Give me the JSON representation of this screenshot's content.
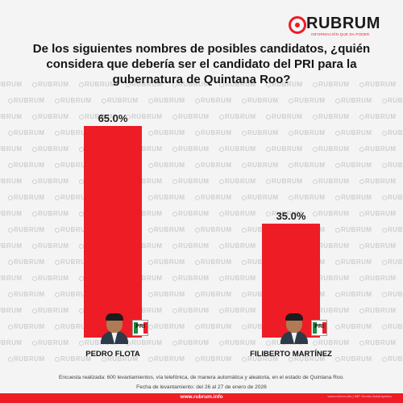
{
  "brand": {
    "name": "RUBRUM",
    "tagline": "INFORMACIÓN QUE DA PODER",
    "watermark_text": "RUBRUM",
    "accent_color": "#ee1c25"
  },
  "question": "De los siguientes nombres de posibles candidatos, ¿quién considera que debería ser el candidato del PRI para la gubernatura de Quintana Roo?",
  "chart_data": {
    "type": "bar",
    "categories": [
      "PEDRO FLOTA",
      "FILIBERTO MARTÍNEZ"
    ],
    "values": [
      65.0,
      35.0
    ],
    "value_labels": [
      "65.0%",
      "35.0%"
    ],
    "unit": "%",
    "ylim": [
      0,
      65
    ],
    "bar_color": "#ee1c25",
    "grid": false,
    "legend": "none"
  },
  "candidates": [
    {
      "photo_icon": "candidate-photo",
      "party_icon": "pri-logo",
      "party_abbr": "PRI"
    },
    {
      "photo_icon": "candidate-photo",
      "party_icon": "pri-logo",
      "party_abbr": "PRI"
    }
  ],
  "footer": {
    "methodology": "Encuesta realizada: 600 levantamientos, vía telefónica, de manera automática y aleatoria, en el estado de Quintana Roo.",
    "dates": "Fecha de levantamiento: del 26 al 27 de enero de 2026",
    "url": "www.rubrum.info",
    "credit": "www.rubrum.info | IMP. Rumbo Autoimpresor"
  }
}
